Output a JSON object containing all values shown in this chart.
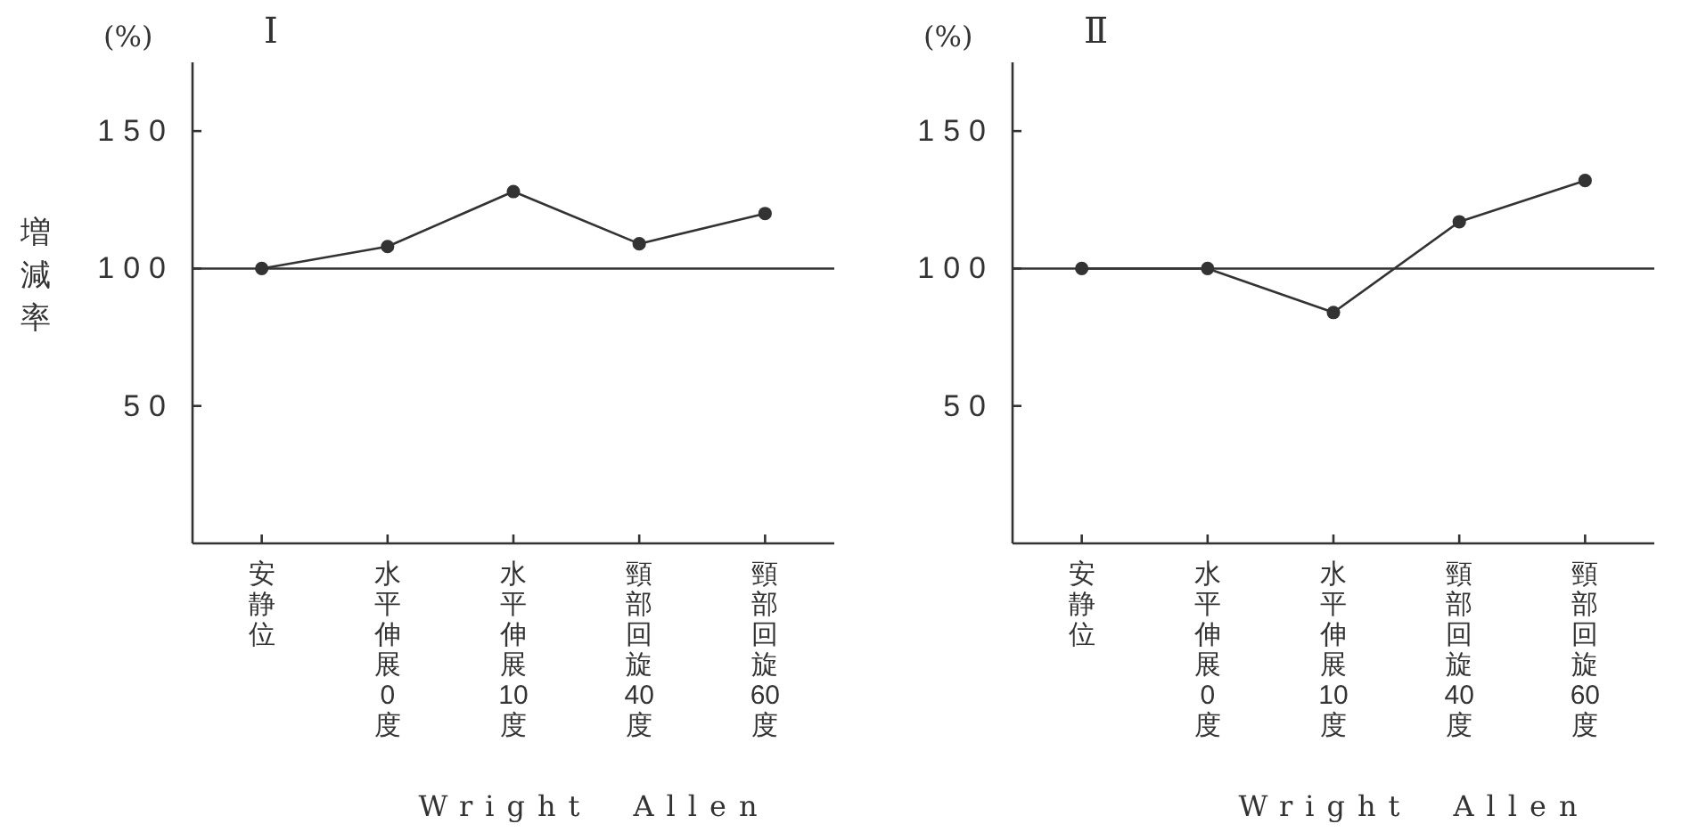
{
  "chart_data": [
    {
      "type": "line",
      "title": "Ⅰ",
      "ylabel": "増減率",
      "xlabel": "Wright　Allen",
      "annotations": [
        "(%)"
      ],
      "categories": [
        "安静位",
        "水平伸展0度",
        "水平伸展10度",
        "頸部回旋40度",
        "頸部回旋60度"
      ],
      "values": [
        100,
        108,
        128,
        109,
        120
      ],
      "color": "#333333",
      "marker": "circle",
      "ylim": [
        0,
        175
      ],
      "yticks": [
        50,
        100,
        150
      ],
      "ref_lines": [
        {
          "axis": "y",
          "value": 100,
          "label": null,
          "color": "#333333"
        }
      ]
    },
    {
      "type": "line",
      "title": "Ⅱ",
      "xlabel": "Wright　Allen",
      "annotations": [
        "(%)"
      ],
      "categories": [
        "安静位",
        "水平伸展0度",
        "水平伸展10度",
        "頸部回旋40度",
        "頸部回旋60度"
      ],
      "values": [
        100,
        100,
        84,
        117,
        132
      ],
      "color": "#333333",
      "marker": "circle",
      "ylim": [
        0,
        175
      ],
      "yticks": [
        50,
        100,
        150
      ],
      "ref_lines": [
        {
          "axis": "y",
          "value": 100,
          "label": null,
          "color": "#333333"
        }
      ]
    }
  ]
}
